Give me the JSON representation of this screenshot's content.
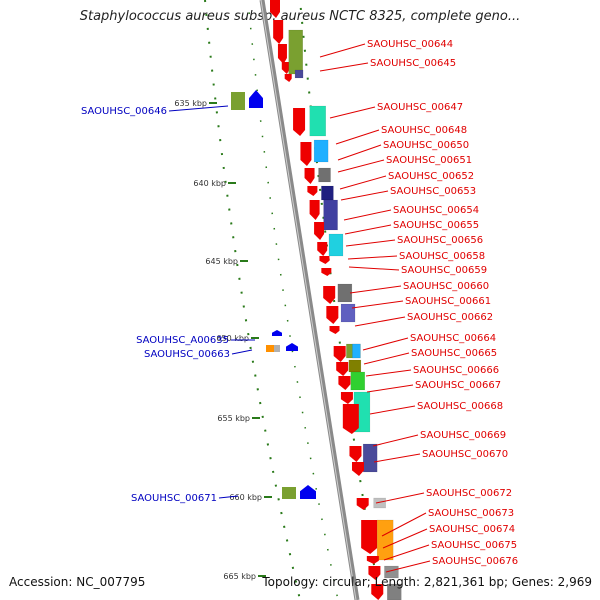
{
  "title": "Staphylococcus aureus subsp. aureus NCTC 8325, complete geno...",
  "footer": {
    "accession": "Accession: NC_007795",
    "topology": "Topology: circular; Length: 2,821,361 bp; Genes: 2,969"
  },
  "colors": {
    "backbone": "#8a8a8a",
    "label_right": "#e00000",
    "label_left": "#0000c0",
    "dotted_ring": "#2a7a1a",
    "forward_strand_arrow": "#0000ee",
    "reverse_strand_arrow": "#ee0000"
  },
  "kbp_ticks": [
    "635 kbp",
    "640 kbp",
    "645 kbp",
    "650 kbp",
    "655 kbp",
    "660 kbp",
    "665 kbp"
  ],
  "genes_right": [
    "SAOUHSC_00644",
    "SAOUHSC_00645",
    "SAOUHSC_00647",
    "SAOUHSC_00648",
    "SAOUHSC_00650",
    "SAOUHSC_00651",
    "SAOUHSC_00652",
    "SAOUHSC_00653",
    "SAOUHSC_00654",
    "SAOUHSC_00655",
    "SAOUHSC_00656",
    "SAOUHSC_00658",
    "SAOUHSC_00659",
    "SAOUHSC_00660",
    "SAOUHSC_00661",
    "SAOUHSC_00662",
    "SAOUHSC_00664",
    "SAOUHSC_00665",
    "SAOUHSC_00666",
    "SAOUHSC_00667",
    "SAOUHSC_00668",
    "SAOUHSC_00669",
    "SAOUHSC_00670",
    "SAOUHSC_00672",
    "SAOUHSC_00673",
    "SAOUHSC_00674",
    "SAOUHSC_00675",
    "SAOUHSC_00676"
  ],
  "genes_left": [
    "SAOUHSC_00646",
    "SAOUHSC_A00635",
    "SAOUHSC_00663",
    "SAOUHSC_00671"
  ]
}
